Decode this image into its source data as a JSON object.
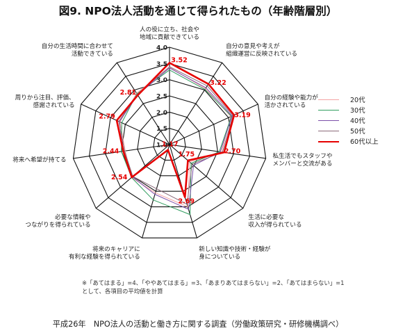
{
  "title": "図9.  NPO法人活動を通じて得られたもの（年齢階層別）",
  "chart_data": {
    "type": "radar",
    "axes": [
      "人の役に立ち、社会や\n地域に貢献できている",
      "自分の意見や考えが\n組織運営に反映されている",
      "自分の経験や能力が\n活かされている",
      "私生活でもスタッフや\nメンバーと交流がある",
      "生活に必要な\n収入が得られている",
      "新しい知識や技術・経験が\n身についている",
      "将来のキャリアに\n有利な経験を得られている",
      "必要な情報や\nつながりを得られている",
      "将来へ希望が持てる",
      "周りから注目、評価、\n感謝されている",
      "自分の生活時間に合わせて\n活動できている"
    ],
    "rticks": [
      "1.0",
      "1.5",
      "2.0",
      "2.5",
      "3.0",
      "3.5",
      "4.0"
    ],
    "rlim": [
      1.0,
      4.0
    ],
    "series": [
      {
        "name": "20代",
        "color": "#f4a3a3",
        "width": 1,
        "values": [
          3.38,
          3.05,
          3.08,
          2.62,
          1.82,
          3.0,
          2.55,
          2.55,
          2.38,
          2.68,
          2.88
        ]
      },
      {
        "name": "30代",
        "color": "#2e9c5e",
        "width": 1,
        "values": [
          3.3,
          3.02,
          3.1,
          2.55,
          1.88,
          3.25,
          2.78,
          2.55,
          2.5,
          2.62,
          2.86
        ]
      },
      {
        "name": "40代",
        "color": "#7a4ea8",
        "width": 1,
        "values": [
          3.36,
          3.08,
          3.12,
          2.58,
          1.98,
          3.08,
          2.6,
          2.52,
          2.45,
          2.7,
          2.82
        ]
      },
      {
        "name": "50代",
        "color": "#8a6a7a",
        "width": 1,
        "values": [
          3.4,
          3.15,
          3.15,
          2.65,
          1.92,
          2.92,
          2.42,
          2.5,
          2.4,
          2.72,
          2.84
        ]
      },
      {
        "name": "60代以上",
        "color": "#e60000",
        "width": 2.6,
        "values": [
          3.52,
          3.22,
          3.19,
          2.7,
          1.75,
          2.69,
          1.17,
          2.54,
          2.44,
          2.79,
          2.81
        ]
      }
    ],
    "value_labels": [
      "3.52",
      "3.22",
      "3.19",
      "2.70",
      "1.75",
      "2.69",
      "1.17",
      "2.54",
      "2.44",
      "2.79",
      "2.81"
    ],
    "grid": true,
    "legend": "right"
  },
  "note": {
    "line1": "※「あてはまる」=4、「ややあてはまる」=3、「あまりあてはまらない」=2、「あてはまらない」=1",
    "line2": "として、各項目の平均値を計算"
  },
  "source": "平成26年　NPO法人の活動と働き方に関する調査（労働政策研究・研修機構調べ）"
}
